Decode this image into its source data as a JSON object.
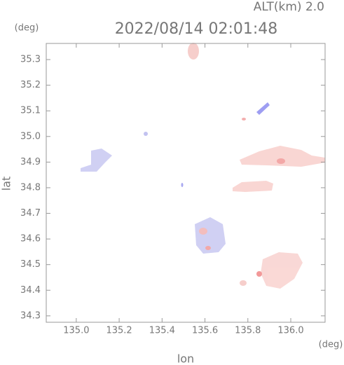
{
  "chart_data": {
    "type": "map",
    "title": "2022/08/14 02:01:48",
    "subtitle": "ALT(km) 2.0",
    "x_label": "lon",
    "y_label": "lat",
    "x_unit": "(deg)",
    "y_unit": "(deg)",
    "xlim": [
      134.86,
      136.16
    ],
    "ylim": [
      34.275,
      35.363
    ],
    "xticks": [
      {
        "value": 135.0,
        "label": "135.0"
      },
      135.2,
      135.4,
      135.6,
      135.8,
      {
        "value": 136.0,
        "label": "136.0"
      }
    ],
    "yticks": [
      35.3,
      35.2,
      35.1,
      {
        "value": 35.0,
        "label": "35.0"
      },
      34.9,
      34.8,
      34.7,
      34.6,
      34.5,
      34.4,
      34.3
    ]
  }
}
